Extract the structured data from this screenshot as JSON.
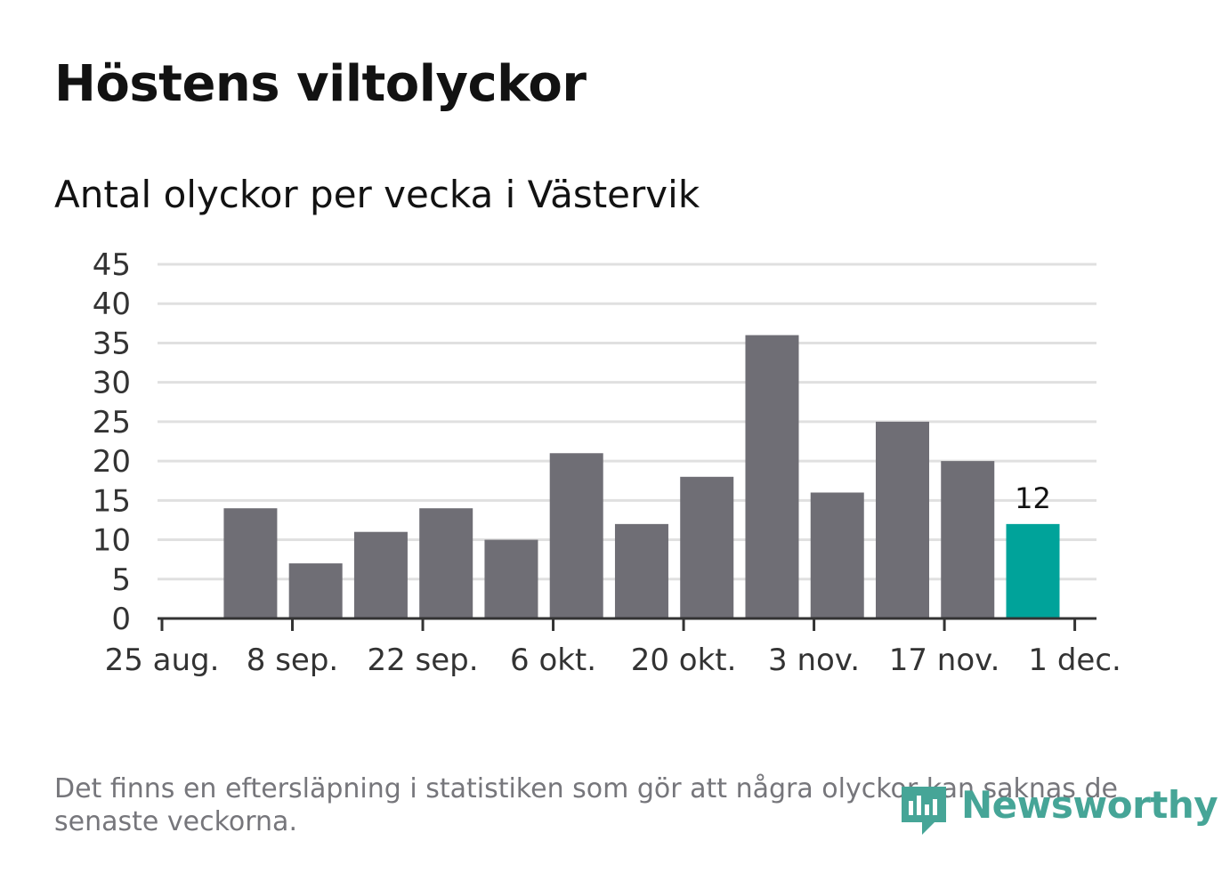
{
  "header": {
    "title": "Höstens viltolyckor",
    "subtitle": "Antal olyckor per vecka i Västervik"
  },
  "footer": {
    "note": "Det finns en eftersläpning i statistiken som gör att några olyckor kan saknas de senaste veckorna.",
    "brand": "Newsworthy"
  },
  "colors": {
    "bar": "#6f6e75",
    "highlight": "#00a39a",
    "grid": "#e0e0e0",
    "axis": "#333333",
    "text": "#333333",
    "logo": "#46a597"
  },
  "chart_data": {
    "type": "bar",
    "x": [
      "2020-08-31",
      "2020-09-07",
      "2020-09-14",
      "2020-09-21",
      "2020-09-28",
      "2020-10-05",
      "2020-10-12",
      "2020-10-19",
      "2020-10-26",
      "2020-11-02",
      "2020-11-09",
      "2020-11-16",
      "2020-11-23"
    ],
    "values": [
      14,
      7,
      11,
      14,
      10,
      21,
      12,
      18,
      36,
      16,
      25,
      20,
      12
    ],
    "highlight_index": 12,
    "data_labels": [
      {
        "index": 12,
        "text": "12"
      }
    ],
    "x_range": [
      "2020-08-25",
      "2020-12-04"
    ],
    "ylim": [
      0,
      45
    ],
    "y_ticks": [
      0,
      5,
      10,
      15,
      20,
      25,
      30,
      35,
      40,
      45
    ],
    "x_ticks": [
      {
        "date": "2020-08-25",
        "label": "25 aug."
      },
      {
        "date": "2020-09-08",
        "label": "8 sep."
      },
      {
        "date": "2020-09-22",
        "label": "22 sep."
      },
      {
        "date": "2020-10-06",
        "label": "6 okt."
      },
      {
        "date": "2020-10-20",
        "label": "20 okt."
      },
      {
        "date": "2020-11-03",
        "label": "3 nov."
      },
      {
        "date": "2020-11-17",
        "label": "17 nov."
      },
      {
        "date": "2020-12-01",
        "label": "1 dec."
      }
    ],
    "title": "Höstens viltolyckor",
    "subtitle": "Antal olyckor per vecka i Västervik",
    "xlabel": "",
    "ylabel": "",
    "grid": true,
    "legend": "none"
  }
}
